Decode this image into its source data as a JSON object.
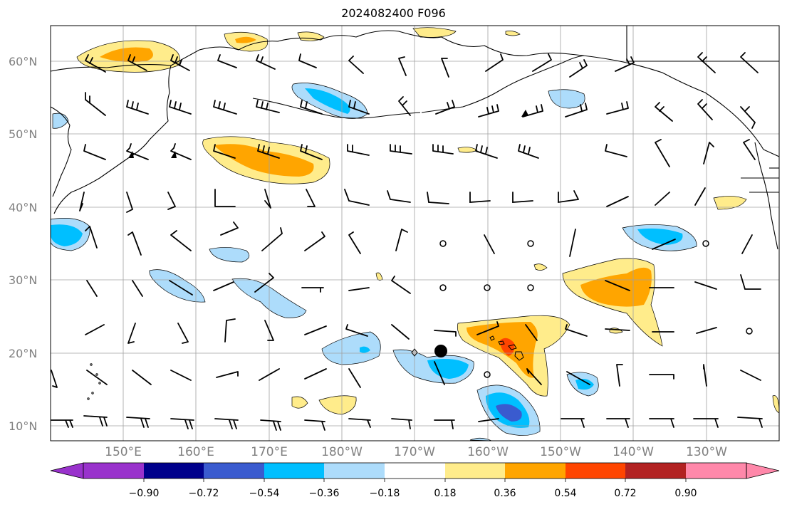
{
  "title": "2024082400 F096",
  "lat_labels": [
    "60°N",
    "50°N",
    "40°N",
    "30°N",
    "20°N",
    "10°N"
  ],
  "lon_labels": [
    "150°E",
    "160°E",
    "170°E",
    "180°W",
    "170°W",
    "160°W",
    "150°W",
    "140°W",
    "130°W"
  ],
  "colorbar": {
    "ticks": [
      "−0.90",
      "−0.72",
      "−0.54",
      "−0.36",
      "−0.18",
      "0.18",
      "0.36",
      "0.54",
      "0.72",
      "0.90"
    ],
    "colors": [
      "#9932cc",
      "#00008b",
      "#3a5bcf",
      "#00bfff",
      "#addcfb",
      "#ffffff",
      "#ffec8b",
      "#ffa500",
      "#ff4500",
      "#b22222",
      "#ff88aa"
    ]
  },
  "map": {
    "lon_range": [
      140,
      240
    ],
    "lat_range": [
      8,
      65
    ],
    "grid": true,
    "marker": {
      "name": "storm-center",
      "lon": 194.5,
      "lat": 20.3
    },
    "shading": {
      "positive_colors": [
        "#ffec8b",
        "#ffa500",
        "#ff4500"
      ],
      "negative_colors": [
        "#addcfb",
        "#00bfff",
        "#3a5bcf"
      ]
    }
  }
}
